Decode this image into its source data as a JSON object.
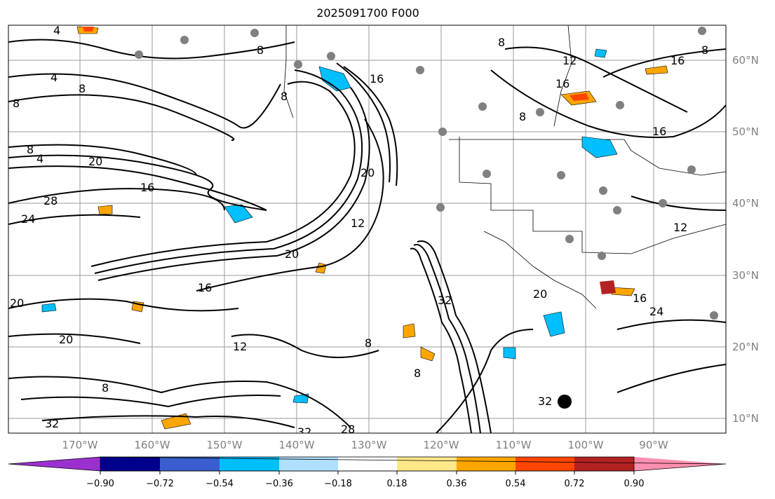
{
  "title": "2025091700 F000",
  "latitude_labels": [
    "60°N",
    "50°N",
    "40°N",
    "30°N",
    "20°N",
    "10°N"
  ],
  "longitude_labels": [
    "170°W",
    "160°W",
    "150°W",
    "140°W",
    "130°W",
    "120°W",
    "110°W",
    "100°W",
    "90°W"
  ],
  "contour_labels": [
    "4",
    "8",
    "12",
    "16",
    "20",
    "24",
    "28",
    "32"
  ],
  "colorbar": {
    "tick_labels": [
      "−0.90",
      "−0.72",
      "−0.54",
      "−0.36",
      "−0.18",
      "0.18",
      "0.36",
      "0.54",
      "0.72",
      "0.90"
    ],
    "colors": [
      "#9b30d0",
      "#00008b",
      "#3a5ecf",
      "#00bfff",
      "#b0e0ff",
      "#ffffff",
      "#ffe88a",
      "#ffa500",
      "#ff4500",
      "#b22222",
      "#ff8fb0"
    ]
  },
  "colors": {
    "contour": "#000000",
    "grid": "#9a9a9a",
    "axis_labels": "#808080",
    "station_dots": "#808080"
  }
}
